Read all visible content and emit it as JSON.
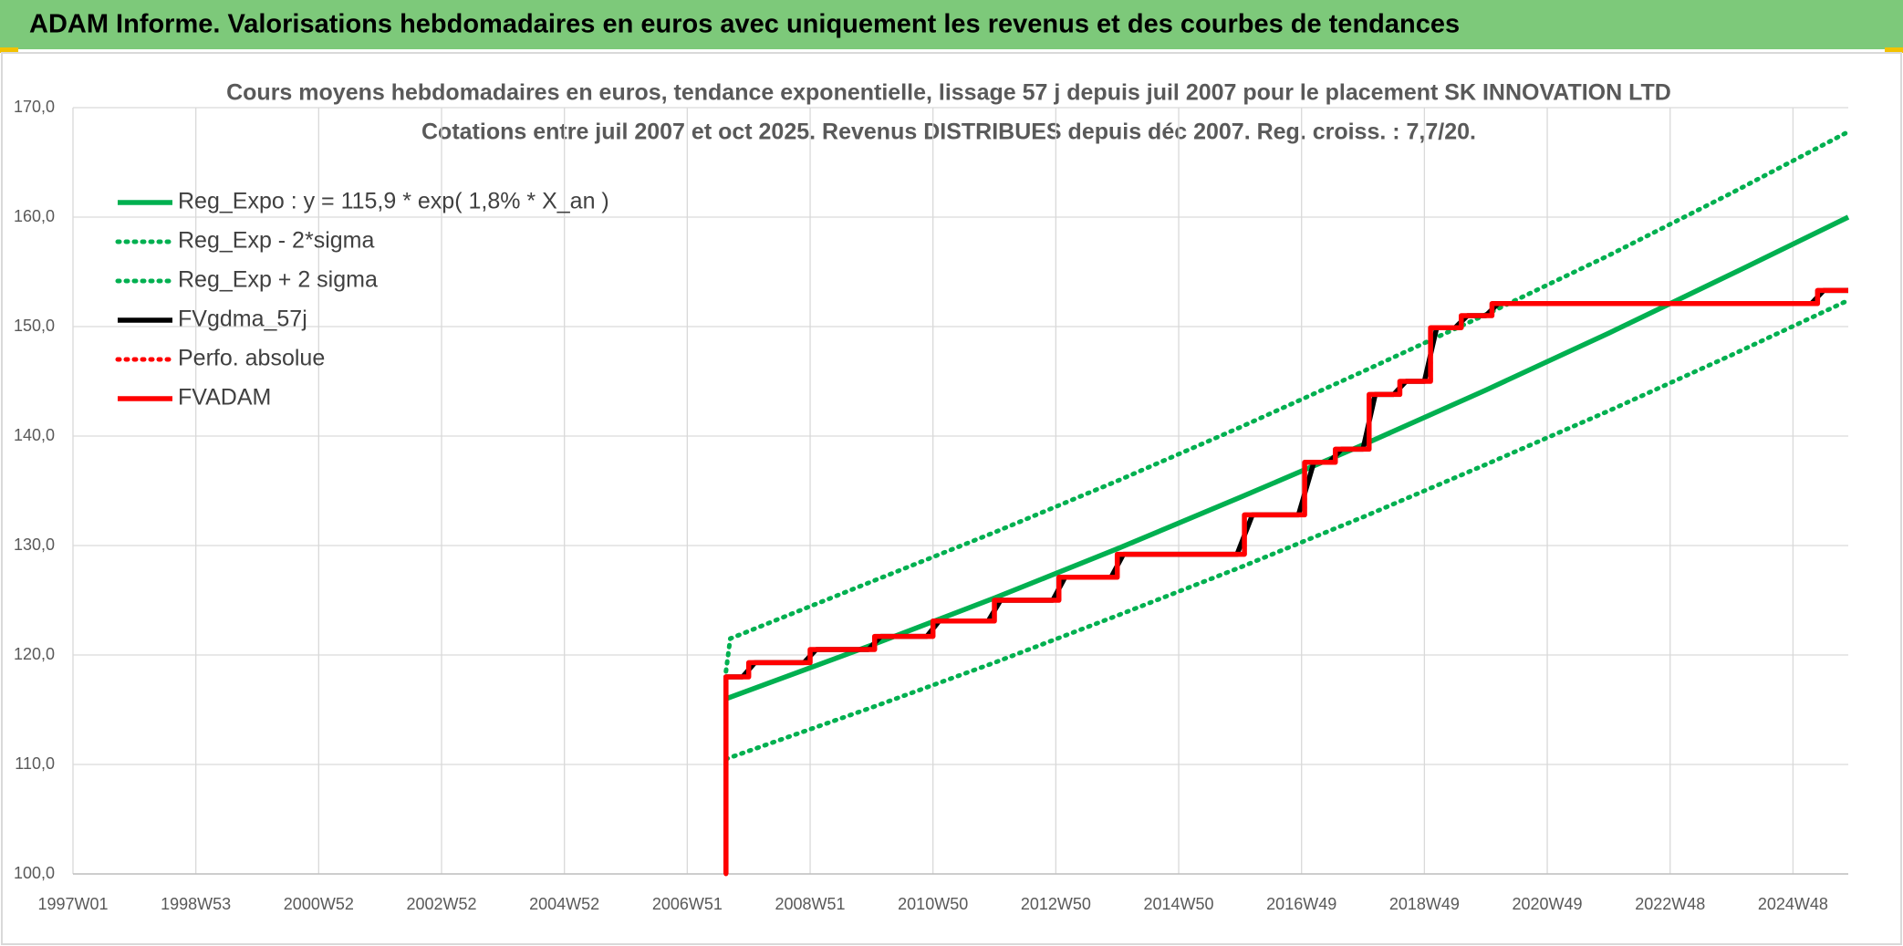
{
  "header": {
    "title": "ADAM Informe. Valorisations hebdomadaires en euros avec uniquement les revenus et des courbes de tendances"
  },
  "chart_data": {
    "type": "line",
    "title": "Cours moyens hebdomadaires en euros, tendance exponentielle, lissage 57 j depuis juil 2007 pour le placement SK INNOVATION LTD",
    "subtitle": "Cotations entre juil 2007 et oct 2025. Revenus DISTRIBUES depuis déc 2007. Reg. croiss. : 7,7/20.",
    "xlim": [
      1997.0,
      2025.9
    ],
    "xticks": [
      {
        "value": 1997.0,
        "label": "1997W01"
      },
      {
        "value": 1999.0,
        "label": "1998W53"
      },
      {
        "value": 2001.0,
        "label": "2000W52"
      },
      {
        "value": 2003.0,
        "label": "2002W52"
      },
      {
        "value": 2005.0,
        "label": "2004W52"
      },
      {
        "value": 2007.0,
        "label": "2006W51"
      },
      {
        "value": 2009.0,
        "label": "2008W51"
      },
      {
        "value": 2011.0,
        "label": "2010W50"
      },
      {
        "value": 2013.0,
        "label": "2012W50"
      },
      {
        "value": 2015.0,
        "label": "2014W50"
      },
      {
        "value": 2017.0,
        "label": "2016W49"
      },
      {
        "value": 2019.0,
        "label": "2018W49"
      },
      {
        "value": 2021.0,
        "label": "2020W49"
      },
      {
        "value": 2023.0,
        "label": "2022W48"
      },
      {
        "value": 2025.0,
        "label": "2024W48"
      }
    ],
    "ylim": [
      100,
      170
    ],
    "yticks": [
      {
        "value": 100,
        "label": "100,0"
      },
      {
        "value": 110,
        "label": "110,0"
      },
      {
        "value": 120,
        "label": "120,0"
      },
      {
        "value": 130,
        "label": "130,0"
      },
      {
        "value": 140,
        "label": "140,0"
      },
      {
        "value": 150,
        "label": "150,0"
      },
      {
        "value": 160,
        "label": "160,0"
      },
      {
        "value": 170,
        "label": "170,0"
      }
    ],
    "grid": true,
    "legend": "top-left",
    "series": [
      {
        "name": "Reg_Expo : y = 115,9 * exp( 1,8% *  X_an )",
        "color": "#00b050",
        "line_style": "solid",
        "x": [
          2007.63,
          2010,
          2012,
          2014,
          2016,
          2018,
          2020,
          2022,
          2024,
          2025.9
        ],
        "values": [
          116.0,
          120.9,
          125.2,
          129.7,
          134.4,
          139.2,
          144.2,
          149.4,
          154.8,
          160.0
        ]
      },
      {
        "name": "Reg_Exp - 2*sigma",
        "color": "#00b050",
        "line_style": "dotted",
        "x": [
          2007.63,
          2010,
          2012,
          2014,
          2016,
          2018,
          2020,
          2022,
          2024,
          2025.9
        ],
        "values": [
          110.5,
          115.2,
          119.3,
          123.6,
          128.0,
          132.6,
          137.4,
          142.3,
          147.4,
          152.4
        ]
      },
      {
        "name": "Reg_Exp + 2 sigma",
        "color": "#00b050",
        "line_style": "dotted",
        "x": [
          2007.63,
          2007.7,
          2010,
          2012,
          2014,
          2016,
          2018,
          2020,
          2022,
          2024,
          2025.9
        ],
        "values": [
          118.5,
          121.5,
          126.7,
          131.2,
          135.9,
          140.8,
          145.9,
          151.1,
          156.5,
          162.2,
          167.8
        ]
      },
      {
        "name": "FVgdma_57j",
        "color": "#000000",
        "line_style": "solid",
        "x": [
          2007.63,
          2007.63,
          2007.9,
          2008.1,
          2008.9,
          2009.1,
          2009.95,
          2010.15,
          2010.9,
          2011.1,
          2011.9,
          2012.1,
          2012.95,
          2013.15,
          2013.9,
          2014.1,
          2015.95,
          2016.2,
          2016.95,
          2017.2,
          2017.45,
          2017.65,
          2018.0,
          2018.2,
          2018.5,
          2018.7,
          2019.0,
          2019.2,
          2019.5,
          2019.7,
          2020.0,
          2020.2,
          2025.3,
          2025.5,
          2025.9
        ],
        "values": [
          100,
          118.0,
          118.0,
          119.3,
          119.3,
          120.5,
          120.5,
          121.7,
          121.7,
          123.1,
          123.1,
          125.0,
          125.0,
          127.1,
          127.1,
          129.2,
          129.2,
          132.8,
          132.8,
          137.6,
          137.6,
          138.8,
          138.8,
          143.8,
          143.8,
          145.0,
          145.0,
          149.9,
          149.9,
          151.0,
          151.0,
          152.1,
          152.1,
          153.3,
          153.3
        ]
      },
      {
        "name": "Perfo. absolue",
        "color": "#ff0000",
        "line_style": "dotted",
        "x": [
          2007.63,
          2007.63,
          2008.0,
          2008.0,
          2009.0,
          2009.0,
          2010.05,
          2010.05,
          2011.0,
          2011.0,
          2012.0,
          2012.0,
          2013.05,
          2013.05,
          2014.0,
          2014.0,
          2016.07,
          2016.07,
          2017.05,
          2017.05,
          2017.55,
          2017.55,
          2018.1,
          2018.1,
          2018.6,
          2018.6,
          2019.1,
          2019.1,
          2019.6,
          2019.6,
          2020.1,
          2020.1,
          2025.4,
          2025.4,
          2025.9
        ],
        "values": [
          100,
          118.0,
          118.0,
          119.3,
          119.3,
          120.5,
          120.5,
          121.7,
          121.7,
          123.1,
          123.1,
          125.0,
          125.0,
          127.1,
          127.1,
          129.2,
          129.2,
          132.8,
          132.8,
          137.6,
          137.6,
          138.8,
          138.8,
          143.8,
          143.8,
          145.0,
          145.0,
          149.9,
          149.9,
          151.0,
          151.0,
          152.1,
          152.1,
          153.3,
          153.3
        ]
      },
      {
        "name": "FVADAM",
        "color": "#ff0000",
        "line_style": "solid",
        "x": [
          2007.63,
          2007.63,
          2008.0,
          2008.0,
          2009.0,
          2009.0,
          2010.05,
          2010.05,
          2011.0,
          2011.0,
          2012.0,
          2012.0,
          2013.05,
          2013.05,
          2014.0,
          2014.0,
          2016.07,
          2016.07,
          2017.05,
          2017.05,
          2017.55,
          2017.55,
          2018.1,
          2018.1,
          2018.6,
          2018.6,
          2019.1,
          2019.1,
          2019.6,
          2019.6,
          2020.1,
          2020.1,
          2025.4,
          2025.4,
          2025.9
        ],
        "values": [
          100,
          118.0,
          118.0,
          119.3,
          119.3,
          120.5,
          120.5,
          121.7,
          121.7,
          123.1,
          123.1,
          125.0,
          125.0,
          127.1,
          127.1,
          129.2,
          129.2,
          132.8,
          132.8,
          137.6,
          137.6,
          138.8,
          138.8,
          143.8,
          143.8,
          145.0,
          145.0,
          149.9,
          149.9,
          151.0,
          151.0,
          152.1,
          152.1,
          153.3,
          153.3
        ]
      }
    ]
  }
}
